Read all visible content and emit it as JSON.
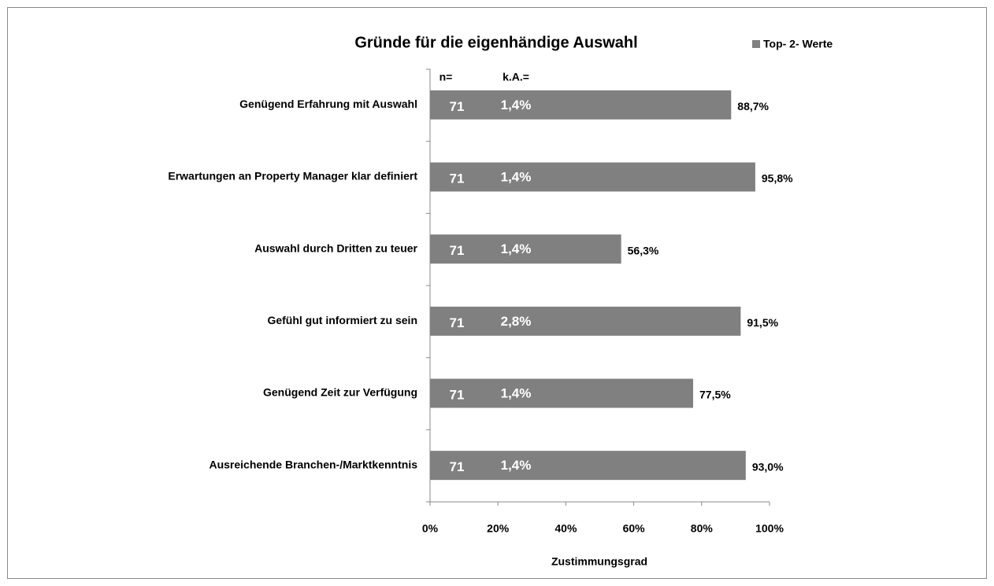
{
  "chart_data": {
    "type": "bar",
    "orientation": "horizontal",
    "title": "Gründe für die eigenhändige Auswahl",
    "categories": [
      "Genügend Erfahrung mit Auswahl",
      "Erwartungen an Property Manager klar definiert",
      "Auswahl durch Dritten zu teuer",
      "Gefühl gut informiert zu sein",
      "Genügend Zeit zur Verfügung",
      "Ausreichende Branchen-/Marktkenntnis"
    ],
    "series": [
      {
        "name": "Top- 2- Werte",
        "color": "#808080",
        "values": [
          88.7,
          95.8,
          56.3,
          91.5,
          77.5,
          93.0
        ],
        "value_labels": [
          "88,7%",
          "95,8%",
          "56,3%",
          "91,5%",
          "77,5%",
          "93,0%"
        ]
      }
    ],
    "n_header": "n=",
    "n_values": [
      71,
      71,
      71,
      71,
      71,
      71
    ],
    "ka_header": "k.A.=",
    "ka_labels": [
      "1,4%",
      "1,4%",
      "1,4%",
      "2,8%",
      "1,4%",
      "1,4%"
    ],
    "xlabel": "Zustimmungsgrad",
    "xlim": [
      0,
      100
    ],
    "xticks": [
      {
        "value": 0,
        "label": "0%"
      },
      {
        "value": 20,
        "label": "20%"
      },
      {
        "value": 40,
        "label": "40%"
      },
      {
        "value": 60,
        "label": "60%"
      },
      {
        "value": 80,
        "label": "80%"
      },
      {
        "value": 100,
        "label": "100%"
      }
    ],
    "legend": "top-right"
  }
}
